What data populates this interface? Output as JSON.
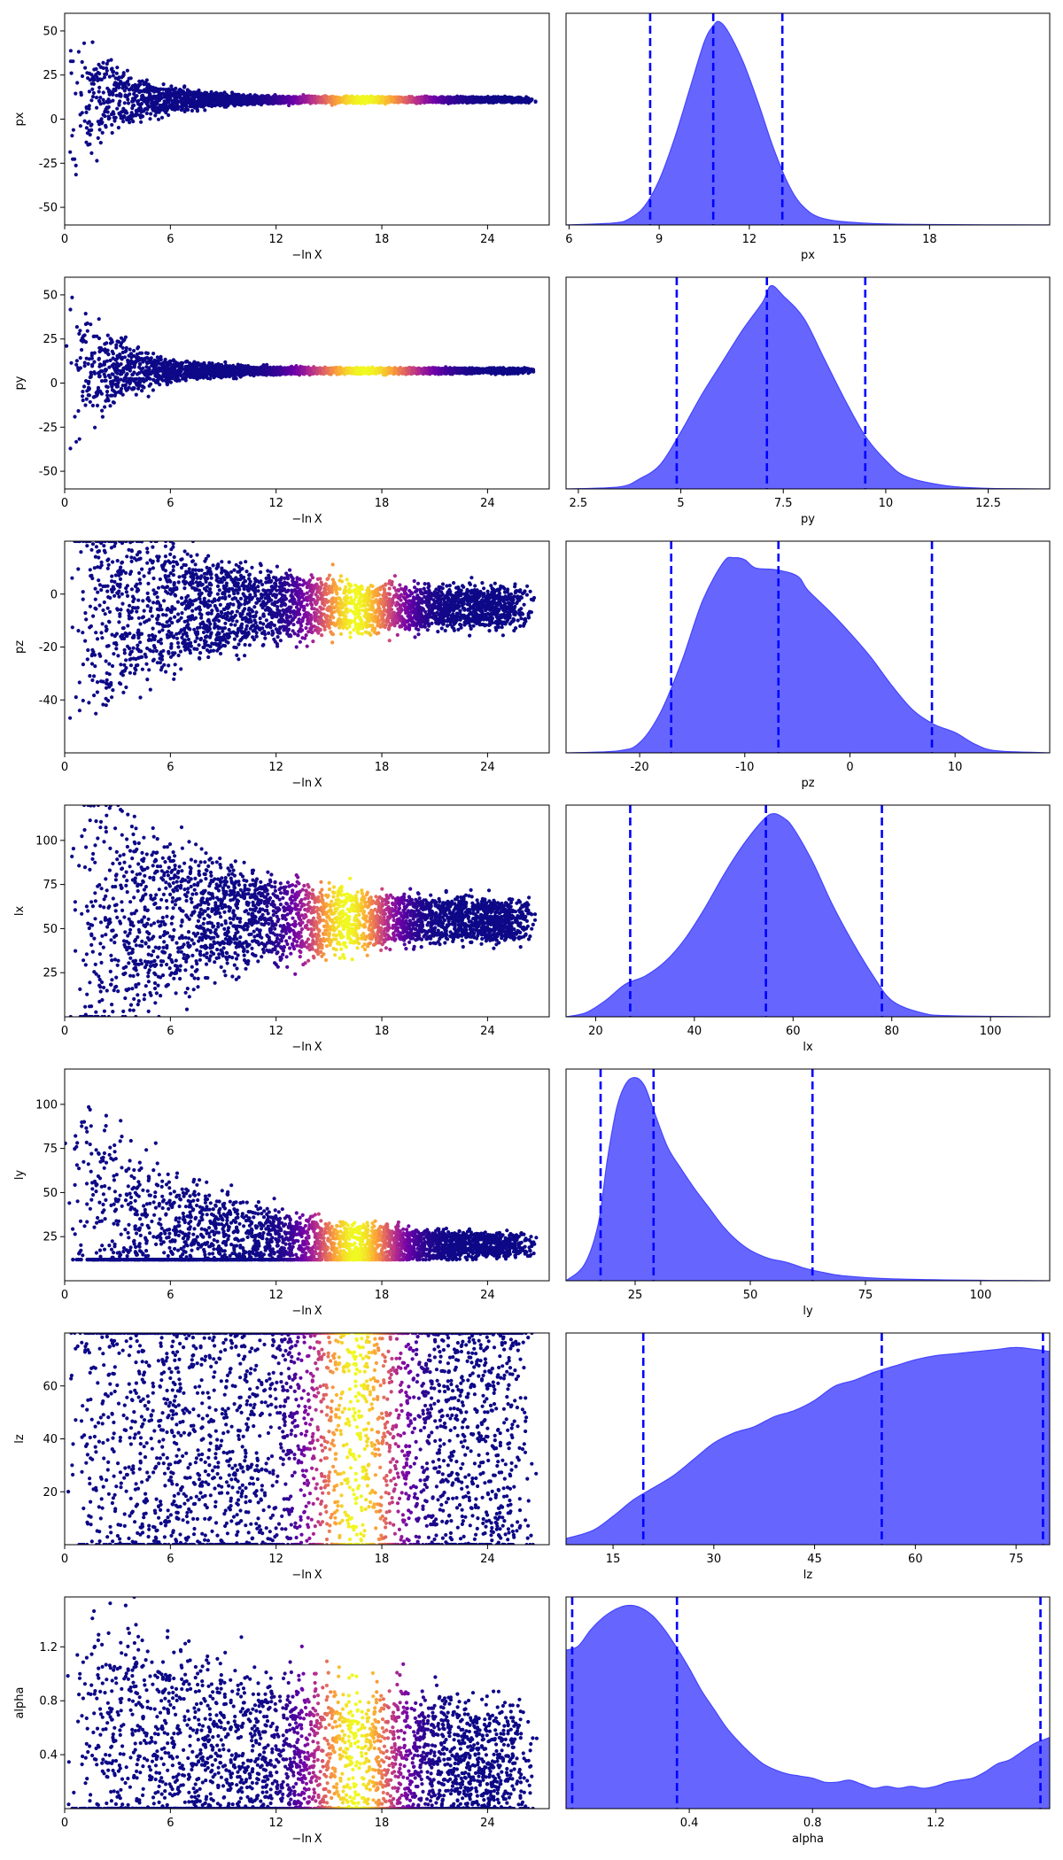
{
  "trace_x_label": "−ln X",
  "trace_x_range": [
    0,
    27.5
  ],
  "trace_x_ticks": [
    0,
    6,
    12,
    18,
    24
  ],
  "colors": {
    "hist_fill": "#6666ff",
    "hist_edge": "#4444ff",
    "quantile_line": "#0000ff",
    "cmap": [
      "#0d0887",
      "#6a00a8",
      "#b12a90",
      "#e16462",
      "#fca636",
      "#f0f921"
    ]
  },
  "chart_data": [
    {
      "type": "scatter+density",
      "param": "px",
      "trace": {
        "ylabel": "px",
        "ylim": [
          -60,
          60
        ],
        "yticks": [
          50,
          25,
          0,
          -25,
          -50
        ],
        "center": 11,
        "start_width": 60,
        "end_width": 2,
        "decay": 0.35,
        "peak_x": 17,
        "peak_width": 3.2,
        "min": -60,
        "max": 60
      },
      "density": {
        "xlabel": "px",
        "xlim": [
          5.9,
          22
        ],
        "xticks": [
          6,
          9,
          12,
          15,
          18
        ],
        "quantiles": [
          8.7,
          10.8,
          13.1
        ],
        "curve": [
          [
            5.9,
            0
          ],
          [
            7.5,
            0.01
          ],
          [
            8.0,
            0.03
          ],
          [
            8.5,
            0.09
          ],
          [
            9.0,
            0.22
          ],
          [
            9.5,
            0.42
          ],
          [
            10.0,
            0.66
          ],
          [
            10.5,
            0.9
          ],
          [
            10.8,
            0.98
          ],
          [
            11.0,
            1.0
          ],
          [
            11.3,
            0.95
          ],
          [
            11.8,
            0.8
          ],
          [
            12.3,
            0.6
          ],
          [
            12.8,
            0.38
          ],
          [
            13.3,
            0.2
          ],
          [
            13.8,
            0.09
          ],
          [
            14.5,
            0.03
          ],
          [
            16,
            0.008
          ],
          [
            18,
            0.002
          ],
          [
            22,
            0
          ]
        ]
      }
    },
    {
      "type": "scatter+density",
      "param": "py",
      "trace": {
        "ylabel": "py",
        "ylim": [
          -60,
          60
        ],
        "yticks": [
          50,
          25,
          0,
          -25,
          -50
        ],
        "center": 7,
        "start_width": 60,
        "end_width": 2,
        "decay": 0.35,
        "peak_x": 17,
        "peak_width": 3.2,
        "min": -60,
        "max": 60
      },
      "density": {
        "xlabel": "py",
        "xlim": [
          2.2,
          14
        ],
        "xticks": [
          2.5,
          5.0,
          7.5,
          10.0,
          12.5
        ],
        "quantiles": [
          4.9,
          7.1,
          9.5
        ],
        "curve": [
          [
            2.2,
            0
          ],
          [
            3.5,
            0.01
          ],
          [
            4.0,
            0.05
          ],
          [
            4.5,
            0.12
          ],
          [
            5.0,
            0.28
          ],
          [
            5.5,
            0.46
          ],
          [
            6.0,
            0.62
          ],
          [
            6.5,
            0.78
          ],
          [
            7.0,
            0.92
          ],
          [
            7.2,
            1.0
          ],
          [
            7.5,
            0.95
          ],
          [
            8.0,
            0.84
          ],
          [
            8.5,
            0.64
          ],
          [
            9.0,
            0.44
          ],
          [
            9.5,
            0.26
          ],
          [
            10.0,
            0.14
          ],
          [
            10.5,
            0.06
          ],
          [
            11.5,
            0.015
          ],
          [
            12.5,
            0.003
          ],
          [
            14,
            0
          ]
        ]
      }
    },
    {
      "type": "scatter+density",
      "param": "pz",
      "trace": {
        "ylabel": "pz",
        "ylim": [
          -60,
          20
        ],
        "yticks": [
          0,
          -20,
          -40
        ],
        "center": -5,
        "start_width": 70,
        "end_width": 9,
        "decay": 0.18,
        "peak_x": 16.5,
        "peak_width": 2.4,
        "min": -60,
        "max": 20
      },
      "density": {
        "xlabel": "pz",
        "xlim": [
          -27,
          19
        ],
        "xticks": [
          -20,
          -10,
          0,
          10
        ],
        "quantiles": [
          -17,
          -6.8,
          7.8
        ],
        "curve": [
          [
            -27,
            0
          ],
          [
            -22,
            0.01
          ],
          [
            -20,
            0.05
          ],
          [
            -18,
            0.2
          ],
          [
            -16,
            0.45
          ],
          [
            -14,
            0.75
          ],
          [
            -12,
            0.94
          ],
          [
            -11,
            0.96
          ],
          [
            -10,
            0.95
          ],
          [
            -9,
            0.91
          ],
          [
            -7,
            0.9
          ],
          [
            -5,
            0.87
          ],
          [
            -4,
            0.8
          ],
          [
            -2,
            0.7
          ],
          [
            0,
            0.59
          ],
          [
            2,
            0.47
          ],
          [
            4,
            0.33
          ],
          [
            6,
            0.21
          ],
          [
            8,
            0.14
          ],
          [
            10,
            0.1
          ],
          [
            12,
            0.04
          ],
          [
            14,
            0.01
          ],
          [
            19,
            0
          ]
        ]
      }
    },
    {
      "type": "scatter+density",
      "param": "lx",
      "trace": {
        "ylabel": "lx",
        "ylim": [
          0,
          120
        ],
        "yticks": [
          25,
          50,
          75,
          100
        ],
        "center": 55,
        "start_width": 120,
        "end_width": 12,
        "decay": 0.15,
        "peak_x": 16,
        "peak_width": 2.4,
        "min": 0,
        "max": 120
      },
      "density": {
        "xlabel": "lx",
        "xlim": [
          14,
          112
        ],
        "xticks": [
          20,
          40,
          60,
          80,
          100
        ],
        "quantiles": [
          27,
          54.5,
          78
        ],
        "curve": [
          [
            14,
            0
          ],
          [
            18,
            0.02
          ],
          [
            22,
            0.08
          ],
          [
            26,
            0.16
          ],
          [
            30,
            0.2
          ],
          [
            34,
            0.27
          ],
          [
            38,
            0.38
          ],
          [
            42,
            0.53
          ],
          [
            46,
            0.7
          ],
          [
            50,
            0.85
          ],
          [
            54,
            0.97
          ],
          [
            56,
            1.0
          ],
          [
            58,
            0.98
          ],
          [
            60,
            0.93
          ],
          [
            64,
            0.76
          ],
          [
            68,
            0.55
          ],
          [
            72,
            0.37
          ],
          [
            76,
            0.21
          ],
          [
            80,
            0.08
          ],
          [
            86,
            0.02
          ],
          [
            92,
            0.005
          ],
          [
            112,
            0
          ]
        ]
      }
    },
    {
      "type": "scatter+density",
      "param": "ly",
      "trace": {
        "ylabel": "ly",
        "ylim": [
          0,
          120
        ],
        "yticks": [
          25,
          50,
          75,
          100
        ],
        "center": 20,
        "start_width": 120,
        "end_width": 6,
        "decay": 0.15,
        "peak_x": 16.5,
        "peak_width": 2.4,
        "min": 12,
        "max": 120
      },
      "density": {
        "xlabel": "ly",
        "xlim": [
          10,
          115
        ],
        "xticks": [
          25,
          50,
          75,
          100
        ],
        "quantiles": [
          17.5,
          29,
          63.5
        ],
        "curve": [
          [
            10,
            0
          ],
          [
            14,
            0.08
          ],
          [
            17,
            0.28
          ],
          [
            19,
            0.6
          ],
          [
            21,
            0.85
          ],
          [
            23,
            0.97
          ],
          [
            25,
            1.0
          ],
          [
            27,
            0.96
          ],
          [
            29,
            0.84
          ],
          [
            32,
            0.66
          ],
          [
            35,
            0.55
          ],
          [
            38,
            0.45
          ],
          [
            41,
            0.36
          ],
          [
            44,
            0.27
          ],
          [
            47,
            0.2
          ],
          [
            50,
            0.15
          ],
          [
            54,
            0.11
          ],
          [
            58,
            0.09
          ],
          [
            62,
            0.06
          ],
          [
            66,
            0.04
          ],
          [
            70,
            0.025
          ],
          [
            80,
            0.01
          ],
          [
            100,
            0.002
          ],
          [
            115,
            0
          ]
        ]
      }
    },
    {
      "type": "scatter+density",
      "param": "lz",
      "trace": {
        "ylabel": "lz",
        "ylim": [
          0,
          80
        ],
        "yticks": [
          20,
          40,
          60
        ],
        "center": 45,
        "start_width": 80,
        "end_width": 80,
        "decay": 0.1,
        "peak_x": 16.5,
        "peak_width": 2.4,
        "min": 0,
        "max": 80
      },
      "density": {
        "xlabel": "lz",
        "xlim": [
          8,
          80
        ],
        "xticks": [
          15,
          30,
          45,
          60,
          75
        ],
        "quantiles": [
          19.5,
          55,
          79
        ],
        "curve": [
          [
            8,
            0.03
          ],
          [
            12,
            0.07
          ],
          [
            15,
            0.14
          ],
          [
            18,
            0.22
          ],
          [
            21,
            0.28
          ],
          [
            24,
            0.34
          ],
          [
            27,
            0.42
          ],
          [
            30,
            0.5
          ],
          [
            33,
            0.55
          ],
          [
            36,
            0.58
          ],
          [
            39,
            0.63
          ],
          [
            42,
            0.66
          ],
          [
            45,
            0.71
          ],
          [
            48,
            0.78
          ],
          [
            51,
            0.81
          ],
          [
            54,
            0.85
          ],
          [
            57,
            0.88
          ],
          [
            60,
            0.91
          ],
          [
            63,
            0.93
          ],
          [
            66,
            0.94
          ],
          [
            69,
            0.95
          ],
          [
            72,
            0.96
          ],
          [
            75,
            0.97
          ],
          [
            78,
            0.96
          ],
          [
            80,
            0.95
          ]
        ]
      }
    },
    {
      "type": "scatter+density",
      "param": "alpha",
      "trace": {
        "ylabel": "alpha",
        "ylim": [
          0,
          1.57
        ],
        "yticks": [
          0.4,
          0.8,
          1.2
        ],
        "center": 0.3,
        "start_width": 1.6,
        "end_width": 0.5,
        "decay": 0.09,
        "peak_x": 16.5,
        "peak_width": 2.4,
        "min": 0,
        "max": 1.57
      },
      "density": {
        "xlabel": "alpha",
        "xlim": [
          0,
          1.57
        ],
        "xticks": [
          0.4,
          0.8,
          1.2
        ],
        "quantiles": [
          0.02,
          0.36,
          1.54
        ],
        "curve": [
          [
            0,
            0.78
          ],
          [
            0.04,
            0.8
          ],
          [
            0.08,
            0.88
          ],
          [
            0.12,
            0.94
          ],
          [
            0.16,
            0.98
          ],
          [
            0.2,
            1.0
          ],
          [
            0.24,
            0.99
          ],
          [
            0.28,
            0.95
          ],
          [
            0.32,
            0.88
          ],
          [
            0.36,
            0.79
          ],
          [
            0.4,
            0.69
          ],
          [
            0.44,
            0.58
          ],
          [
            0.48,
            0.49
          ],
          [
            0.52,
            0.4
          ],
          [
            0.56,
            0.33
          ],
          [
            0.6,
            0.27
          ],
          [
            0.64,
            0.22
          ],
          [
            0.68,
            0.19
          ],
          [
            0.72,
            0.17
          ],
          [
            0.76,
            0.16
          ],
          [
            0.8,
            0.15
          ],
          [
            0.84,
            0.13
          ],
          [
            0.88,
            0.13
          ],
          [
            0.92,
            0.14
          ],
          [
            0.96,
            0.12
          ],
          [
            1.0,
            0.1
          ],
          [
            1.04,
            0.11
          ],
          [
            1.08,
            0.1
          ],
          [
            1.12,
            0.11
          ],
          [
            1.16,
            0.1
          ],
          [
            1.2,
            0.11
          ],
          [
            1.24,
            0.13
          ],
          [
            1.28,
            0.14
          ],
          [
            1.32,
            0.15
          ],
          [
            1.36,
            0.18
          ],
          [
            1.4,
            0.22
          ],
          [
            1.44,
            0.24
          ],
          [
            1.48,
            0.28
          ],
          [
            1.52,
            0.32
          ],
          [
            1.57,
            0.35
          ]
        ]
      }
    }
  ]
}
